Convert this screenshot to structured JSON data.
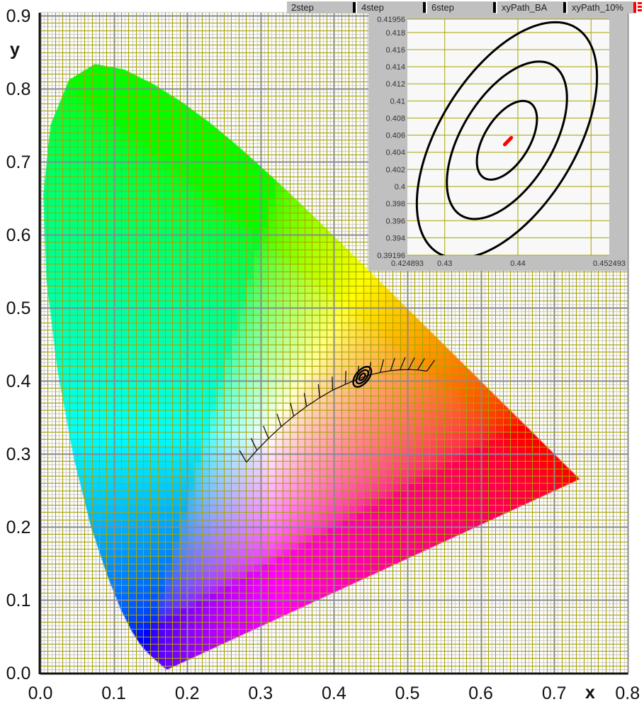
{
  "legend": {
    "items": [
      {
        "name": "2step",
        "color": "#000000"
      },
      {
        "name": "4step",
        "color": "#000000"
      },
      {
        "name": "6step",
        "color": "#000000"
      },
      {
        "name": "xyPath_BA",
        "color": "#000000"
      },
      {
        "name": "xyPath_10%",
        "color": "#ff0000"
      }
    ]
  },
  "chart_data": [
    {
      "type": "line",
      "xlabel": "x",
      "ylabel": "y",
      "xlim": [
        0,
        0.8
      ],
      "ylim": [
        0,
        0.9
      ],
      "xticks": [
        "0.0",
        "0.1",
        "0.2",
        "0.3",
        "0.4",
        "0.5",
        "0.6",
        "0.7",
        "0.8"
      ],
      "yticks": [
        "0.0",
        "0.1",
        "0.2",
        "0.3",
        "0.4",
        "0.5",
        "0.6",
        "0.7",
        "0.8",
        "0.9"
      ],
      "grid": {
        "minor_step": 0.01,
        "major_step": 0.1,
        "minor_color": "#a8a400",
        "major_color": "#8a8a8a"
      },
      "spectral_locus": {
        "x": [
          0.1741,
          0.1733,
          0.1726,
          0.1714,
          0.1689,
          0.1644,
          0.1566,
          0.144,
          0.1355,
          0.1241,
          0.1096,
          0.0913,
          0.0687,
          0.0454,
          0.0235,
          0.0082,
          0.0039,
          0.0139,
          0.0389,
          0.0743,
          0.1142,
          0.1547,
          0.1929,
          0.2296,
          0.2658,
          0.3016,
          0.3373,
          0.3731,
          0.4087,
          0.4441,
          0.4788,
          0.5125,
          0.5448,
          0.5752,
          0.6029,
          0.627,
          0.6658,
          0.6915,
          0.7079,
          0.719,
          0.726,
          0.73,
          0.7347
        ],
        "y": [
          0.005,
          0.0048,
          0.0048,
          0.0051,
          0.0069,
          0.0109,
          0.0177,
          0.0297,
          0.0399,
          0.0578,
          0.0868,
          0.1327,
          0.2007,
          0.295,
          0.4127,
          0.5384,
          0.6548,
          0.7502,
          0.812,
          0.8338,
          0.8262,
          0.8059,
          0.7816,
          0.7543,
          0.7243,
          0.6923,
          0.6589,
          0.6245,
          0.5896,
          0.5547,
          0.5202,
          0.4866,
          0.4544,
          0.4242,
          0.3965,
          0.3725,
          0.334,
          0.3083,
          0.292,
          0.2809,
          0.274,
          0.27,
          0.2653
        ]
      },
      "planckian_path": {
        "x": [
          0.2807,
          0.295,
          0.3107,
          0.328,
          0.3451,
          0.3626,
          0.3805,
          0.3981,
          0.4155,
          0.4316,
          0.4469,
          0.463,
          0.477,
          0.49,
          0.5015,
          0.514,
          0.5267
        ],
        "y": [
          0.2884,
          0.3048,
          0.321,
          0.3372,
          0.3516,
          0.3648,
          0.3768,
          0.3871,
          0.395,
          0.402,
          0.4075,
          0.4113,
          0.4137,
          0.415,
          0.4153,
          0.4148,
          0.4133
        ]
      },
      "ellipses": [
        {
          "name": "2step",
          "cx": 0.4385,
          "cy": 0.4054,
          "a": 0.00542,
          "b": 0.00294,
          "angle_deg": 51
        },
        {
          "name": "4step",
          "cx": 0.4385,
          "cy": 0.4054,
          "a": 0.01084,
          "b": 0.00588,
          "angle_deg": 51
        },
        {
          "name": "6step",
          "cx": 0.4385,
          "cy": 0.4054,
          "a": 0.01626,
          "b": 0.00882,
          "angle_deg": 51
        }
      ],
      "xyPath_10%": {
        "x": [
          0.4382,
          0.4391
        ],
        "y": [
          0.4049,
          0.4057
        ]
      }
    },
    {
      "type": "line",
      "xlim": [
        0.424893,
        0.452493
      ],
      "ylim": [
        0.39196,
        0.41956
      ],
      "xticks": [
        "0.424893",
        "0.43",
        "0.44",
        "0.452493"
      ],
      "xtick_values": [
        0.424893,
        0.43,
        0.44,
        0.452493
      ],
      "yticks": [
        "0.41956",
        "0.418",
        "0.416",
        "0.414",
        "0.412",
        "0.41",
        "0.408",
        "0.406",
        "0.404",
        "0.402",
        "0.4",
        "0.398",
        "0.396",
        "0.394",
        "0.39196"
      ],
      "ytick_values": [
        0.41956,
        0.418,
        0.416,
        0.414,
        0.412,
        0.41,
        0.408,
        0.406,
        0.404,
        0.402,
        0.4,
        0.398,
        0.396,
        0.394,
        0.39196
      ],
      "grid_x": [
        0.43,
        0.44,
        0.45
      ],
      "grid_color": "#a8a400",
      "background": "#f8f8f8",
      "panel_color": "#c0c0c0"
    }
  ]
}
